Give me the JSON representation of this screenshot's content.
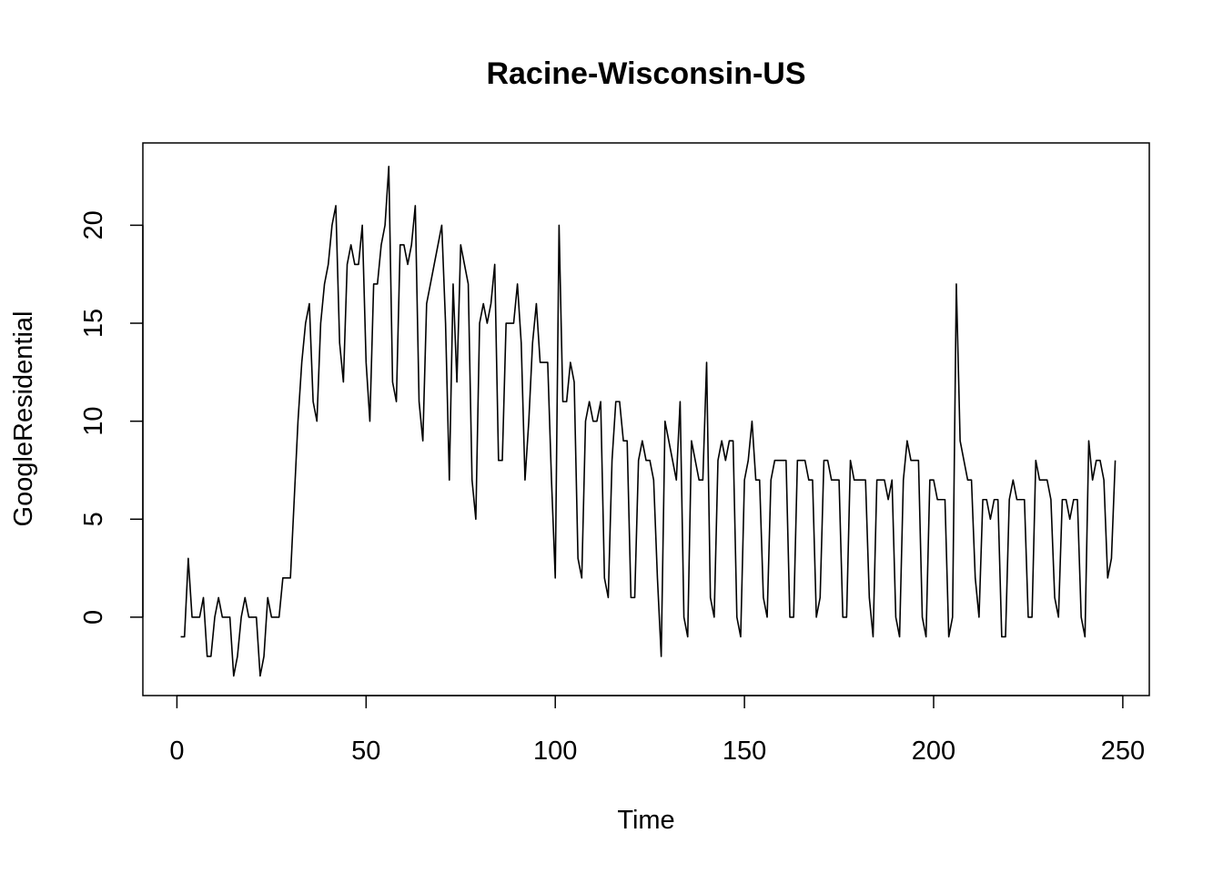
{
  "chart_data": {
    "type": "line",
    "title": "Racine-Wisconsin-US",
    "xlabel": "Time",
    "ylabel": "GoogleResidential",
    "xlim": [
      -9,
      257
    ],
    "ylim": [
      -4,
      24.2
    ],
    "x_ticks": [
      0,
      50,
      100,
      150,
      200,
      250
    ],
    "y_ticks": [
      0,
      5,
      10,
      15,
      20
    ],
    "grid": false,
    "series": [
      {
        "values": [
          -1,
          -1,
          3,
          0,
          0,
          0,
          1,
          -2,
          -2,
          0,
          1,
          0,
          0,
          0,
          -3,
          -2,
          0,
          1,
          0,
          0,
          0,
          -3,
          -2,
          1,
          0,
          0,
          0,
          2,
          2,
          2,
          6,
          10,
          13,
          15,
          16,
          11,
          10,
          15,
          17,
          18,
          20,
          21,
          14,
          12,
          18,
          19,
          18,
          18,
          20,
          13,
          10,
          17,
          17,
          19,
          20,
          23,
          12,
          11,
          19,
          19,
          18,
          19,
          21,
          11,
          9,
          16,
          17,
          18,
          19,
          20,
          15,
          7,
          17,
          12,
          19,
          18,
          17,
          7,
          5,
          15,
          16,
          15,
          16,
          18,
          8,
          8,
          15,
          15,
          15,
          17,
          14,
          7,
          10,
          14,
          16,
          13,
          13,
          13,
          7,
          2,
          20,
          11,
          11,
          13,
          12,
          3,
          2,
          10,
          11,
          10,
          10,
          11,
          2,
          1,
          8,
          11,
          11,
          9,
          9,
          1,
          1,
          8,
          9,
          8,
          8,
          7,
          2,
          -2,
          10,
          9,
          8,
          7,
          11,
          0,
          -1,
          9,
          8,
          7,
          7,
          13,
          1,
          0,
          8,
          9,
          8,
          9,
          9,
          0,
          -1,
          7,
          8,
          10,
          7,
          7,
          1,
          0,
          7,
          8,
          8,
          8,
          8,
          0,
          0,
          8,
          8,
          8,
          7,
          7,
          0,
          1,
          8,
          8,
          7,
          7,
          7,
          0,
          0,
          8,
          7,
          7,
          7,
          7,
          1,
          -1,
          7,
          7,
          7,
          6,
          7,
          0,
          -1,
          7,
          9,
          8,
          8,
          8,
          0,
          -1,
          7,
          7,
          6,
          6,
          6,
          -1,
          0,
          17,
          9,
          8,
          7,
          7,
          2,
          0,
          6,
          6,
          5,
          6,
          6,
          -1,
          -1,
          6,
          7,
          6,
          6,
          6,
          0,
          0,
          8,
          7,
          7,
          7,
          6,
          1,
          0,
          6,
          6,
          5,
          6,
          6,
          0,
          -1,
          9,
          7,
          8,
          8,
          7,
          2,
          3,
          8
        ]
      }
    ]
  }
}
